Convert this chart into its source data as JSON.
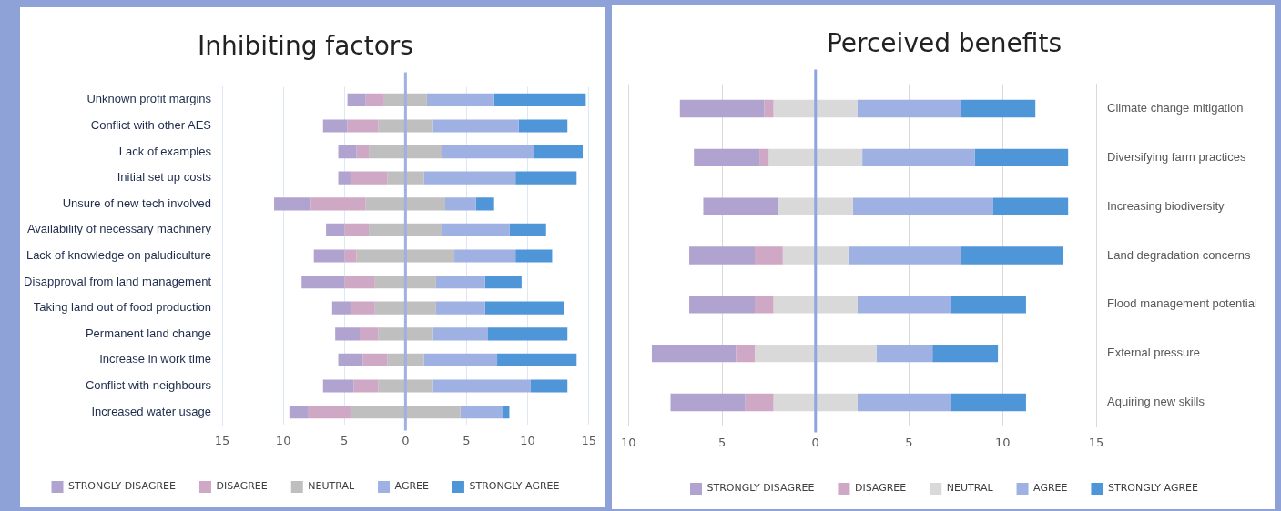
{
  "chart_data": [
    {
      "type": "bar",
      "title": "Inhibiting factors",
      "orientation": "horizontal",
      "categories": [
        "Unknown profit margins",
        "Conflict with other AES",
        "Lack of examples",
        "Initial set up costs",
        "Unsure of new tech involved",
        "Availability of necessary machinery",
        "Lack of knowledge on paludiculture",
        "Disapproval from land management",
        "Taking land out of food production",
        "Permanent land change",
        "Increase in work time",
        "Conflict with neighbours",
        "Increased water usage"
      ],
      "series": [
        {
          "name": "STRONGLY DISAGREE",
          "color": "#b0a3cf",
          "values": [
            1.5,
            2,
            1.5,
            1,
            3,
            1.5,
            2.5,
            3.5,
            1.5,
            2,
            2,
            2.5,
            1.5
          ],
          "base": [
            -4.75,
            -6.75,
            -5.5,
            -5.5,
            -10.75,
            -6.5,
            -7.5,
            -8.5,
            -6,
            -5.75,
            -5.5,
            -6.75,
            -9.5
          ]
        },
        {
          "name": "DISAGREE",
          "color": "#cfa8c5",
          "values": [
            1.5,
            2.5,
            1,
            3,
            4.5,
            2,
            1,
            2.5,
            2,
            1.5,
            2,
            2,
            3.5
          ],
          "base": [
            -3.25,
            -4.75,
            -4,
            -4.5,
            -7.75,
            -5,
            -5,
            -5,
            -4.5,
            -3.75,
            -3.5,
            -4.25,
            -8
          ]
        },
        {
          "name": "NEUTRAL",
          "color": "#bfbfbf",
          "values": [
            3.5,
            4.5,
            6,
            3,
            6.5,
            6,
            8,
            5,
            5,
            4.5,
            3,
            4.5,
            9
          ],
          "base": [
            -1.75,
            -2.25,
            -3,
            -1.5,
            -3.25,
            -3,
            -4,
            -2.5,
            -2.5,
            -2.25,
            -1.5,
            -2.25,
            -4.5
          ]
        },
        {
          "name": "AGREE",
          "color": "#9fb0e3",
          "values": [
            5.5,
            7,
            7.5,
            7.5,
            2.5,
            5.5,
            5,
            4,
            4,
            4.5,
            6,
            8,
            3.5
          ],
          "base": [
            1.75,
            2.25,
            3,
            1.5,
            3.25,
            3,
            4,
            2.5,
            2.5,
            2.25,
            1.5,
            2.25,
            4.5
          ]
        },
        {
          "name": "STRONGLY AGREE",
          "color": "#4f96d9",
          "values": [
            7.5,
            4,
            4,
            5,
            1.5,
            3,
            3,
            3,
            6.5,
            6.5,
            6.5,
            3,
            0.5
          ],
          "base": [
            7.25,
            9.25,
            10.5,
            9,
            5.75,
            8.5,
            9,
            6.5,
            6.5,
            6.75,
            7.5,
            10.25,
            8
          ]
        }
      ],
      "xlim": [
        -15,
        15
      ],
      "xticks": [
        {
          "value": -15,
          "label": "15"
        },
        {
          "value": -10,
          "label": "10"
        },
        {
          "value": -5,
          "label": "5"
        },
        0,
        5,
        10,
        15
      ],
      "grid": "x",
      "legend": "bottom",
      "ref_lines": [
        {
          "axis": "x",
          "value": 0,
          "color": "#9fb0e3"
        }
      ]
    },
    {
      "type": "bar",
      "title": "Perceived benefits",
      "orientation": "horizontal",
      "categories": [
        "Climate change mitigation",
        "Diversifying farm practices",
        "Increasing biodiversity",
        "Land degradation concerns",
        "Flood management potential",
        "External pressure",
        "Aquiring new skills"
      ],
      "series": [
        {
          "name": "STRONGLY DISAGREE",
          "color": "#b0a3cf",
          "values": [
            4.5,
            3.5,
            4,
            3.5,
            3.5,
            4.5,
            4
          ],
          "base": [
            -7.25,
            -6.5,
            -6,
            -6.75,
            -6.75,
            -8.75,
            -7.75
          ]
        },
        {
          "name": "DISAGREE",
          "color": "#cfa8c5",
          "values": [
            0.5,
            0.5,
            null,
            1.5,
            1,
            1,
            1.5
          ],
          "base": [
            -2.75,
            -3,
            null,
            -3.25,
            -3.25,
            -4.25,
            -3.75
          ]
        },
        {
          "name": "NEUTRAL",
          "color": "#d9d9d9",
          "values": [
            4.5,
            5,
            4,
            3.5,
            4.5,
            6.5,
            4.5
          ],
          "base": [
            -2.25,
            -2.5,
            -2,
            -1.75,
            -2.25,
            -3.25,
            -2.25
          ]
        },
        {
          "name": "AGREE",
          "color": "#9fb0e3",
          "values": [
            5.5,
            6,
            7.5,
            6,
            5,
            3,
            5
          ],
          "base": [
            2.25,
            2.5,
            2,
            1.75,
            2.25,
            3.25,
            2.25
          ]
        },
        {
          "name": "STRONGLY AGREE",
          "color": "#4f96d9",
          "values": [
            4,
            5,
            4,
            5.5,
            4,
            3.5,
            4
          ],
          "base": [
            7.75,
            8.5,
            9.5,
            7.75,
            7.25,
            6.25,
            7.25
          ]
        }
      ],
      "xlim": [
        -10,
        15
      ],
      "xticks": [
        {
          "value": -10,
          "label": "10"
        },
        {
          "value": -5,
          "label": "5"
        },
        0,
        5,
        10,
        15
      ],
      "grid": "x",
      "legend": "bottom",
      "ref_lines": [
        {
          "axis": "x",
          "value": 0,
          "color": "#8fa4e0"
        }
      ]
    }
  ]
}
